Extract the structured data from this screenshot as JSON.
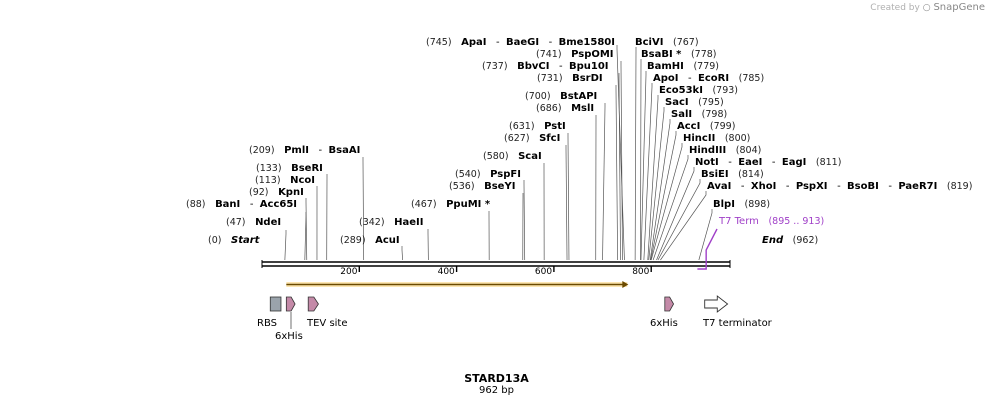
{
  "credit": {
    "prefix": "Created by",
    "brand": "SnapGene"
  },
  "sequence": {
    "name": "STARD13A",
    "length_label": "962 bp",
    "length": 962
  },
  "colors": {
    "line": "#000000",
    "orf": "#f4b942",
    "orf_fill": "#fde6b2",
    "purple": "#a040c8",
    "his_tag": "#c48aa8",
    "rbs": "#9aa3ab"
  },
  "ticks": [
    {
      "value": 200,
      "label": "200"
    },
    {
      "value": 400,
      "label": "400"
    },
    {
      "value": 600,
      "label": "600"
    },
    {
      "value": 800,
      "label": "800"
    }
  ],
  "sites": [
    {
      "pos": 0,
      "pos_label": "(0)",
      "names": [
        "Start"
      ],
      "style": "italic"
    },
    {
      "pos": 962,
      "pos_label": "(962)",
      "names": [
        "End"
      ],
      "style": "italic",
      "pos_after": true
    },
    {
      "pos": 47,
      "pos_label": "(47)",
      "names": [
        "NdeI"
      ]
    },
    {
      "pos": 88,
      "pos_label": "(88)",
      "names": [
        "BanI",
        "Acc65I"
      ]
    },
    {
      "pos": 92,
      "pos_label": "(92)",
      "names": [
        "KpnI"
      ]
    },
    {
      "pos": 113,
      "pos_label": "(113)",
      "names": [
        "NcoI"
      ]
    },
    {
      "pos": 133,
      "pos_label": "(133)",
      "names": [
        "BseRI"
      ]
    },
    {
      "pos": 209,
      "pos_label": "(209)",
      "names": [
        "PmlI",
        "BsaAI"
      ]
    },
    {
      "pos": 289,
      "pos_label": "(289)",
      "names": [
        "AcuI"
      ]
    },
    {
      "pos": 342,
      "pos_label": "(342)",
      "names": [
        "HaeII"
      ]
    },
    {
      "pos": 467,
      "pos_label": "(467)",
      "names": [
        "PpuMI *"
      ]
    },
    {
      "pos": 536,
      "pos_label": "(536)",
      "names": [
        "BseYI"
      ]
    },
    {
      "pos": 540,
      "pos_label": "(540)",
      "names": [
        "PspFI"
      ]
    },
    {
      "pos": 580,
      "pos_label": "(580)",
      "names": [
        "ScaI"
      ]
    },
    {
      "pos": 627,
      "pos_label": "(627)",
      "names": [
        "SfcI"
      ]
    },
    {
      "pos": 631,
      "pos_label": "(631)",
      "names": [
        "PstI"
      ]
    },
    {
      "pos": 686,
      "pos_label": "(686)",
      "names": [
        "MslI"
      ]
    },
    {
      "pos": 700,
      "pos_label": "(700)",
      "names": [
        "BstAPI"
      ]
    },
    {
      "pos": 731,
      "pos_label": "(731)",
      "names": [
        "BsrDI"
      ]
    },
    {
      "pos": 737,
      "pos_label": "(737)",
      "names": [
        "BbvCI",
        "Bpu10I"
      ]
    },
    {
      "pos": 741,
      "pos_label": "(741)",
      "names": [
        "PspOMI"
      ]
    },
    {
      "pos": 745,
      "pos_label": "(745)",
      "names": [
        "ApaI",
        "BaeGI",
        "Bme1580I"
      ]
    },
    {
      "pos": 767,
      "pos_label": "(767)",
      "names": [
        "BciVI"
      ],
      "pos_after": true
    },
    {
      "pos": 778,
      "pos_label": "(778)",
      "names": [
        "BsaBI *"
      ],
      "pos_after": true
    },
    {
      "pos": 779,
      "pos_label": "(779)",
      "names": [
        "BamHI"
      ],
      "pos_after": true
    },
    {
      "pos": 785,
      "pos_label": "(785)",
      "names": [
        "ApoI",
        "EcoRI"
      ],
      "pos_after": true
    },
    {
      "pos": 793,
      "pos_label": "(793)",
      "names": [
        "Eco53kI"
      ],
      "pos_after": true
    },
    {
      "pos": 795,
      "pos_label": "(795)",
      "names": [
        "SacI"
      ],
      "pos_after": true
    },
    {
      "pos": 798,
      "pos_label": "(798)",
      "names": [
        "SalI"
      ],
      "pos_after": true
    },
    {
      "pos": 799,
      "pos_label": "(799)",
      "names": [
        "AccI"
      ],
      "pos_after": true
    },
    {
      "pos": 800,
      "pos_label": "(800)",
      "names": [
        "HincII"
      ],
      "pos_after": true
    },
    {
      "pos": 804,
      "pos_label": "(804)",
      "names": [
        "HindIII"
      ],
      "pos_after": true
    },
    {
      "pos": 811,
      "pos_label": "(811)",
      "names": [
        "NotI",
        "EaeI",
        "EagI"
      ],
      "pos_after": true
    },
    {
      "pos": 814,
      "pos_label": "(814)",
      "names": [
        "BsiEI"
      ],
      "pos_after": true
    },
    {
      "pos": 819,
      "pos_label": "(819)",
      "names": [
        "AvaI",
        "XhoI",
        "PspXI",
        "BsoBI",
        "PaeR7I"
      ],
      "pos_after": true
    },
    {
      "pos": 898,
      "pos_label": "(898)",
      "names": [
        "BlpI"
      ],
      "pos_after": true
    }
  ],
  "terminator_label": {
    "name": "T7 Term",
    "range": "(895 .. 913)",
    "start": 895,
    "end": 913
  },
  "orf": {
    "start": 50,
    "end": 751
  },
  "features": [
    {
      "name": "RBS",
      "type": "rbs",
      "start": 17,
      "end": 39
    },
    {
      "name": "6xHis",
      "type": "his",
      "start": 50,
      "end": 68
    },
    {
      "name": "TEV site",
      "type": "tev",
      "start": 95,
      "end": 116
    },
    {
      "name": "6xHis",
      "type": "his",
      "start": 828,
      "end": 846
    },
    {
      "name": "T7 terminator",
      "type": "term",
      "start": 910,
      "end": 957
    }
  ]
}
